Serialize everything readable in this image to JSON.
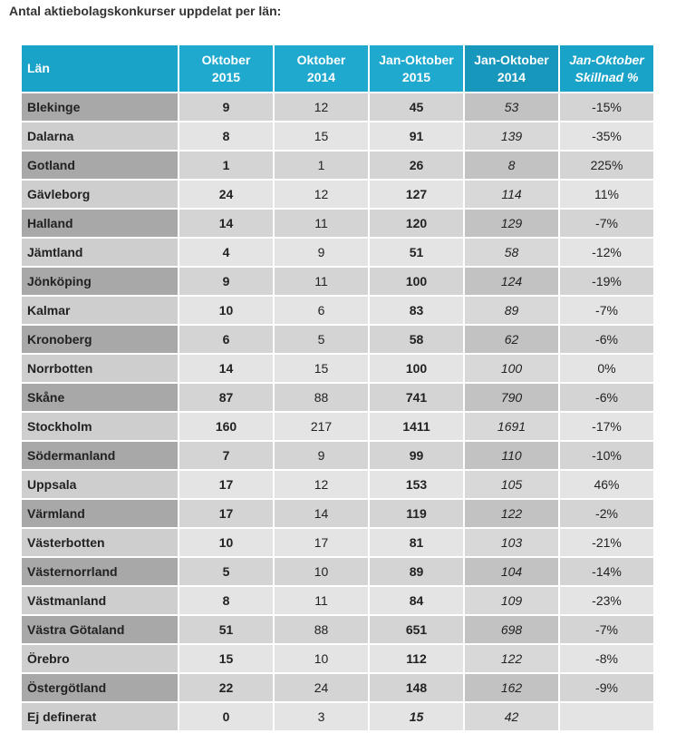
{
  "title": "Antal aktiebolagskonkurser uppdelat per län:",
  "headers": [
    [
      "Län",
      ""
    ],
    [
      "Oktober",
      "2015"
    ],
    [
      "Oktober",
      "2014"
    ],
    [
      "Jan-Oktober",
      "2015"
    ],
    [
      "Jan-Oktober",
      "2014"
    ],
    [
      "Jan-Oktober",
      "Skillnad %"
    ]
  ],
  "rows": [
    {
      "lan": "Blekinge",
      "okt2015": "9",
      "okt2014": "12",
      "jan2015": "45",
      "jan2014": "53",
      "diff": "-15%"
    },
    {
      "lan": "Dalarna",
      "okt2015": "8",
      "okt2014": "15",
      "jan2015": "91",
      "jan2014": "139",
      "diff": "-35%"
    },
    {
      "lan": "Gotland",
      "okt2015": "1",
      "okt2014": "1",
      "jan2015": "26",
      "jan2014": "8",
      "diff": "225%"
    },
    {
      "lan": "Gävleborg",
      "okt2015": "24",
      "okt2014": "12",
      "jan2015": "127",
      "jan2014": "114",
      "diff": "11%"
    },
    {
      "lan": "Halland",
      "okt2015": "14",
      "okt2014": "11",
      "jan2015": "120",
      "jan2014": "129",
      "diff": "-7%"
    },
    {
      "lan": "Jämtland",
      "okt2015": "4",
      "okt2014": "9",
      "jan2015": "51",
      "jan2014": "58",
      "diff": "-12%"
    },
    {
      "lan": "Jönköping",
      "okt2015": "9",
      "okt2014": "11",
      "jan2015": "100",
      "jan2014": "124",
      "diff": "-19%"
    },
    {
      "lan": "Kalmar",
      "okt2015": "10",
      "okt2014": "6",
      "jan2015": "83",
      "jan2014": "89",
      "diff": "-7%"
    },
    {
      "lan": "Kronoberg",
      "okt2015": "6",
      "okt2014": "5",
      "jan2015": "58",
      "jan2014": "62",
      "diff": "-6%"
    },
    {
      "lan": "Norrbotten",
      "okt2015": "14",
      "okt2014": "15",
      "jan2015": "100",
      "jan2014": "100",
      "diff": "0%"
    },
    {
      "lan": "Skåne",
      "okt2015": "87",
      "okt2014": "88",
      "jan2015": "741",
      "jan2014": "790",
      "diff": "-6%"
    },
    {
      "lan": "Stockholm",
      "okt2015": "160",
      "okt2014": "217",
      "jan2015": "1411",
      "jan2014": "1691",
      "diff": "-17%"
    },
    {
      "lan": "Södermanland",
      "okt2015": "7",
      "okt2014": "9",
      "jan2015": "99",
      "jan2014": "110",
      "diff": "-10%"
    },
    {
      "lan": "Uppsala",
      "okt2015": "17",
      "okt2014": "12",
      "jan2015": "153",
      "jan2014": "105",
      "diff": "46%"
    },
    {
      "lan": "Värmland",
      "okt2015": "17",
      "okt2014": "14",
      "jan2015": "119",
      "jan2014": "122",
      "diff": "-2%"
    },
    {
      "lan": "Västerbotten",
      "okt2015": "10",
      "okt2014": "17",
      "jan2015": "81",
      "jan2014": "103",
      "diff": "-21%"
    },
    {
      "lan": "Västernorrland",
      "okt2015": "5",
      "okt2014": "10",
      "jan2015": "89",
      "jan2014": "104",
      "diff": "-14%"
    },
    {
      "lan": "Västmanland",
      "okt2015": "8",
      "okt2014": "11",
      "jan2015": "84",
      "jan2014": "109",
      "diff": "-23%"
    },
    {
      "lan": "Västra Götaland",
      "okt2015": "51",
      "okt2014": "88",
      "jan2015": "651",
      "jan2014": "698",
      "diff": "-7%"
    },
    {
      "lan": "Örebro",
      "okt2015": "15",
      "okt2014": "10",
      "jan2015": "112",
      "jan2014": "122",
      "diff": "-8%"
    },
    {
      "lan": "Östergötland",
      "okt2015": "22",
      "okt2014": "24",
      "jan2015": "148",
      "jan2014": "162",
      "diff": "-9%"
    },
    {
      "lan": "Ej definerat",
      "okt2015": "0",
      "okt2014": "3",
      "jan2015": "15",
      "jan2014": "42",
      "diff": "",
      "italic_jan2015": true
    }
  ]
}
